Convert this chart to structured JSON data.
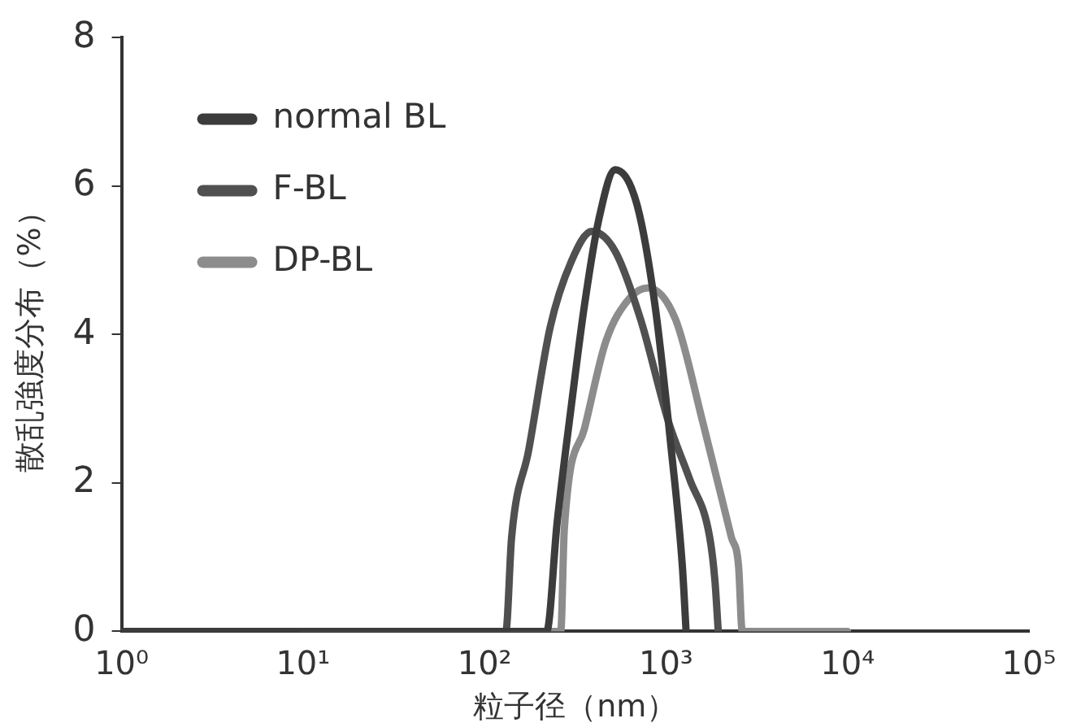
{
  "chart_data": {
    "type": "line",
    "xlabel": "粒子径（nm）",
    "ylabel": "散乱強度分布（%）",
    "log": "x",
    "xlim": [
      1,
      100000
    ],
    "xticks": [
      {
        "value": 1,
        "label": "10⁰"
      },
      {
        "value": 10,
        "label": "10¹"
      },
      {
        "value": 100,
        "label": "10²"
      },
      {
        "value": 1000,
        "label": "10³"
      },
      {
        "value": 10000,
        "label": "10⁴"
      },
      {
        "value": 100000,
        "label": "10⁵"
      }
    ],
    "ylim": [
      0,
      8
    ],
    "yticks": [
      0,
      2,
      4,
      6,
      8
    ],
    "grid": false,
    "legend": "top left",
    "marker": "none",
    "line_style": "solid",
    "series": [
      {
        "name": "normal BL",
        "color": "#3c3c3c",
        "x": [
          1,
          220,
          251,
          300,
          355,
          427,
          525,
          690,
          870,
          1070,
          1230,
          1290
        ],
        "values": [
          0,
          0,
          1.46,
          3.02,
          4.39,
          5.56,
          6.22,
          5.76,
          4.39,
          2.44,
          0.88,
          0
        ]
      },
      {
        "name": "F-BL",
        "color": "#505050",
        "x": [
          1,
          131,
          141,
          175,
          230,
          300,
          390,
          525,
          725,
          1030,
          1350,
          1740,
          1860,
          1940
        ],
        "values": [
          0,
          0,
          1.27,
          2.44,
          4.1,
          4.98,
          5.39,
          5.12,
          4.2,
          2.83,
          2.05,
          1.27,
          0.68,
          0
        ]
      },
      {
        "name": "DP-BL",
        "color": "#8c8c8c",
        "x": [
          10,
          263,
          275,
          355,
          465,
          630,
          795,
          1130,
          1590,
          2290,
          2510,
          2630,
          10000
        ],
        "values": [
          0,
          0,
          1.37,
          2.73,
          3.9,
          4.49,
          4.63,
          4.2,
          2.83,
          1.27,
          0.88,
          0,
          0
        ]
      }
    ]
  }
}
